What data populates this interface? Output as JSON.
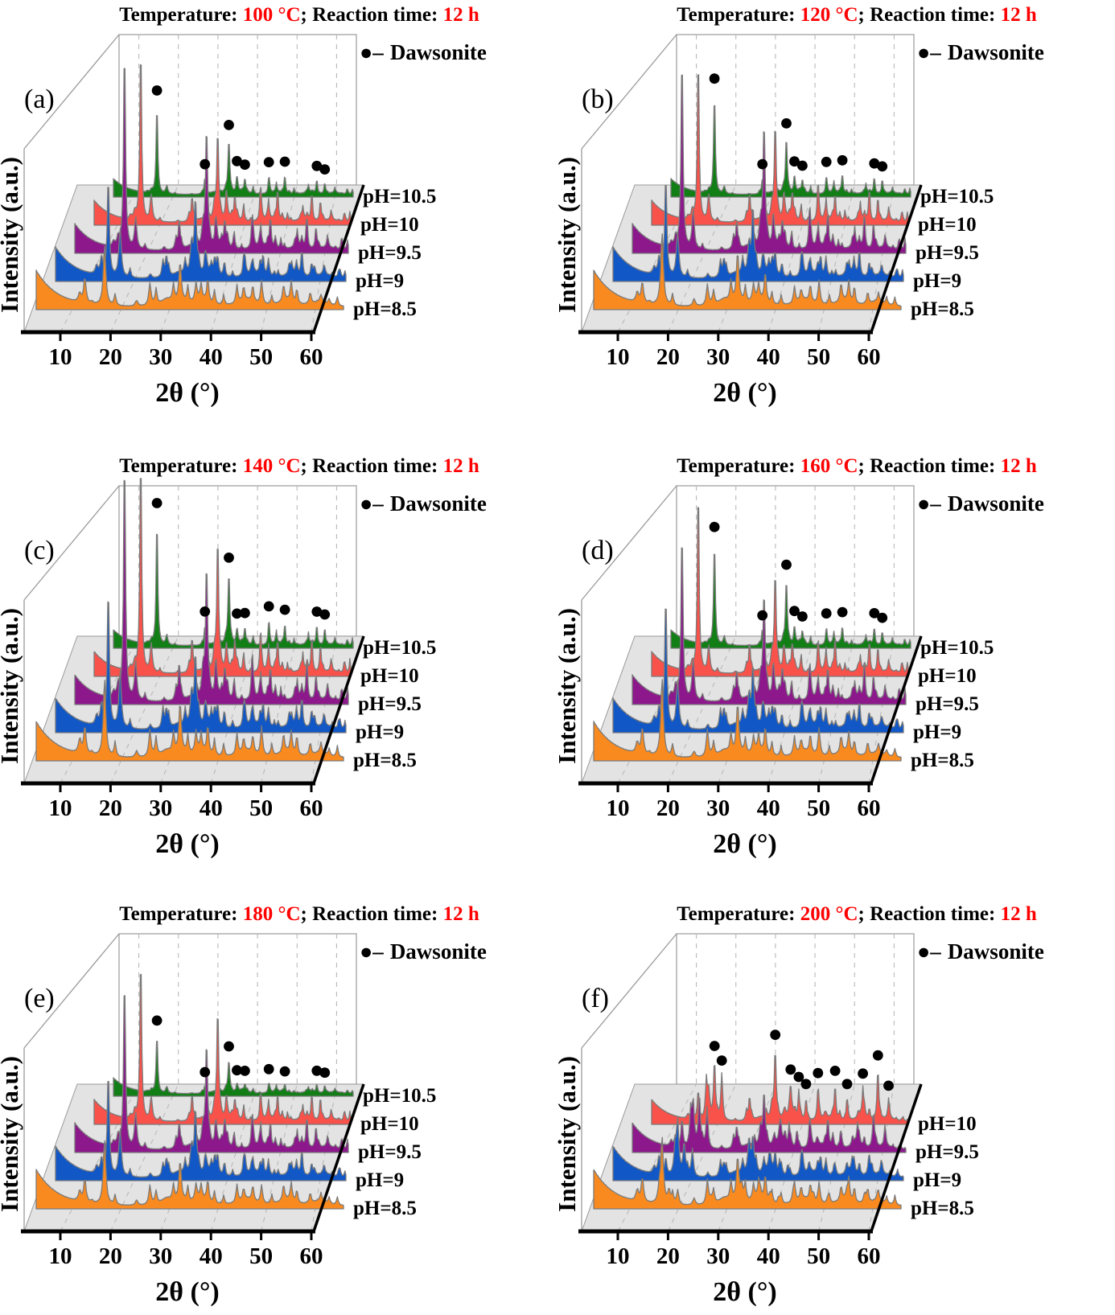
{
  "figure": {
    "y_axis_label": "Intensity (a.u.)",
    "x_axis_label": "2θ (°)",
    "x_ticks": [
      10,
      20,
      30,
      40,
      50,
      60
    ],
    "x_range_2theta": [
      5,
      65
    ],
    "legend": {
      "marker": "●–",
      "label": "Dawsonite"
    },
    "colors": {
      "pH_8_5": "#F98A1F",
      "pH_9": "#1157C5",
      "pH_9_5": "#8C188C",
      "pH_10": "#F8524A",
      "pH_10_5": "#127E16",
      "title_highlight": "#FF0000",
      "floor": "#E3E3E3",
      "curve_outline": "#7A7A7A"
    }
  },
  "chart_data": [
    {
      "panel_label": "(a)",
      "type": "line",
      "subtype": "3d_waterfall_xrd",
      "title": {
        "prefix": "Temperature: ",
        "temperature": "100 °C",
        "separator": "; Reaction time: ",
        "time": "12 h"
      },
      "series": [
        {
          "label": "pH=8.5",
          "color": "#F98A1F"
        },
        {
          "label": "pH=9",
          "color": "#1157C5"
        },
        {
          "label": "pH=9.5",
          "color": "#8C188C"
        },
        {
          "label": "pH=10",
          "color": "#F8524A"
        },
        {
          "label": "pH=10.5",
          "color": "#127E16"
        }
      ],
      "dawsonite_markers_2theta": [
        15.9,
        27.9,
        33.9,
        35.9,
        37.9,
        43.9,
        47.9,
        55.9,
        57.9
      ]
    },
    {
      "panel_label": "(b)",
      "type": "line",
      "subtype": "3d_waterfall_xrd",
      "title": {
        "prefix": "Temperature: ",
        "temperature": "120 °C",
        "separator": "; Reaction time: ",
        "time": "12 h"
      },
      "series": [
        {
          "label": "pH=8.5",
          "color": "#F98A1F"
        },
        {
          "label": "pH=9",
          "color": "#1157C5"
        },
        {
          "label": "pH=9.5",
          "color": "#8C188C"
        },
        {
          "label": "pH=10",
          "color": "#F8524A"
        },
        {
          "label": "pH=10.5",
          "color": "#127E16"
        }
      ],
      "dawsonite_markers_2theta": [
        15.9,
        27.9,
        33.9,
        35.9,
        37.9,
        43.9,
        47.9,
        55.9,
        57.9
      ]
    },
    {
      "panel_label": "(c)",
      "type": "line",
      "subtype": "3d_waterfall_xrd",
      "title": {
        "prefix": "Temperature: ",
        "temperature": "140 °C",
        "separator": "; Reaction time: ",
        "time": "12 h"
      },
      "series": [
        {
          "label": "pH=8.5",
          "color": "#F98A1F"
        },
        {
          "label": "pH=9",
          "color": "#1157C5"
        },
        {
          "label": "pH=9.5",
          "color": "#8C188C"
        },
        {
          "label": "pH=10",
          "color": "#F8524A"
        },
        {
          "label": "pH=10.5",
          "color": "#127E16"
        }
      ],
      "dawsonite_markers_2theta": [
        15.9,
        27.9,
        33.9,
        35.9,
        37.9,
        43.9,
        47.9,
        55.9,
        57.9
      ]
    },
    {
      "panel_label": "(d)",
      "type": "line",
      "subtype": "3d_waterfall_xrd",
      "title": {
        "prefix": "Temperature: ",
        "temperature": "160 °C",
        "separator": "; Reaction time: ",
        "time": "12 h"
      },
      "series": [
        {
          "label": "pH=8.5",
          "color": "#F98A1F"
        },
        {
          "label": "pH=9",
          "color": "#1157C5"
        },
        {
          "label": "pH=9.5",
          "color": "#8C188C"
        },
        {
          "label": "pH=10",
          "color": "#F8524A"
        },
        {
          "label": "pH=10.5",
          "color": "#127E16"
        }
      ],
      "dawsonite_markers_2theta": [
        15.9,
        27.9,
        33.9,
        35.9,
        37.9,
        43.9,
        47.9,
        55.9,
        57.9
      ]
    },
    {
      "panel_label": "(e)",
      "type": "line",
      "subtype": "3d_waterfall_xrd",
      "title": {
        "prefix": "Temperature: ",
        "temperature": "180 °C",
        "separator": "; Reaction time: ",
        "time": "12 h"
      },
      "series": [
        {
          "label": "pH=8.5",
          "color": "#F98A1F"
        },
        {
          "label": "pH=9",
          "color": "#1157C5"
        },
        {
          "label": "pH=9.5",
          "color": "#8C188C"
        },
        {
          "label": "pH=10",
          "color": "#F8524A"
        },
        {
          "label": "pH=10.5",
          "color": "#127E16"
        }
      ],
      "dawsonite_markers_2theta": [
        15.9,
        27.9,
        33.9,
        35.9,
        37.9,
        43.9,
        47.9,
        55.9,
        57.9
      ]
    },
    {
      "panel_label": "(f)",
      "type": "line",
      "subtype": "3d_waterfall_xrd",
      "title": {
        "prefix": "Temperature: ",
        "temperature": "200 °C",
        "separator": "; Reaction time: ",
        "time": "12 h"
      },
      "series": [
        {
          "label": "pH=8.5",
          "color": "#F98A1F"
        },
        {
          "label": "pH=9",
          "color": "#1157C5"
        },
        {
          "label": "pH=9.5",
          "color": "#8C188C"
        },
        {
          "label": "pH=10",
          "color": "#F8524A"
        }
      ],
      "dawsonite_markers_2theta": [
        19.7,
        21.4,
        33.9,
        37.5,
        39.4,
        41.1,
        43.9,
        47.9,
        50.7,
        54.4,
        57.9,
        60.4
      ]
    }
  ]
}
